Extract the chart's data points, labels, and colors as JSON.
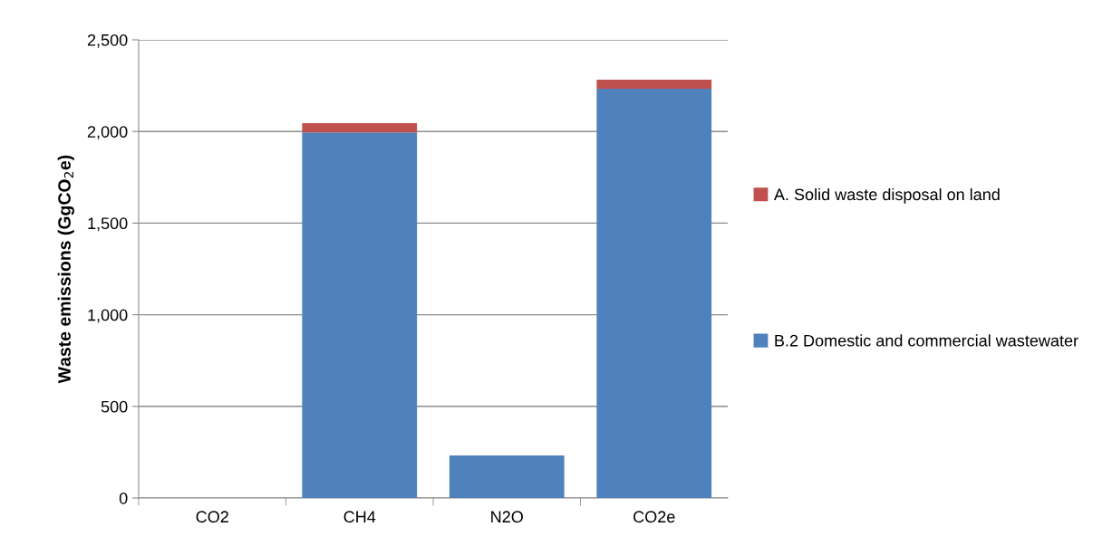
{
  "chart_data": {
    "type": "bar",
    "stacked": true,
    "ylabel": "Waste emissions (GgCO$_{2}$e)",
    "categories": [
      "CO2",
      "CH4",
      "N2O",
      "CO2e"
    ],
    "series": [
      {
        "name": "B.2 Domestic and commercial wastewater",
        "color": "#4f81bd",
        "values": [
          0,
          1995,
          232,
          2233
        ]
      },
      {
        "name": "A. Solid waste disposal on land",
        "color": "#c0504d",
        "values": [
          0,
          50,
          0,
          50
        ]
      }
    ],
    "ylim": [
      0,
      2500
    ],
    "yticks": [
      {
        "value": 0,
        "label": "0"
      },
      {
        "value": 500,
        "label": "500"
      },
      {
        "value": 1000,
        "label": "1,000"
      },
      {
        "value": 1500,
        "label": "1,500"
      },
      {
        "value": 2000,
        "label": "2,000"
      },
      {
        "value": 2500,
        "label": "2,500"
      }
    ],
    "grid": "y",
    "legend": "right"
  }
}
